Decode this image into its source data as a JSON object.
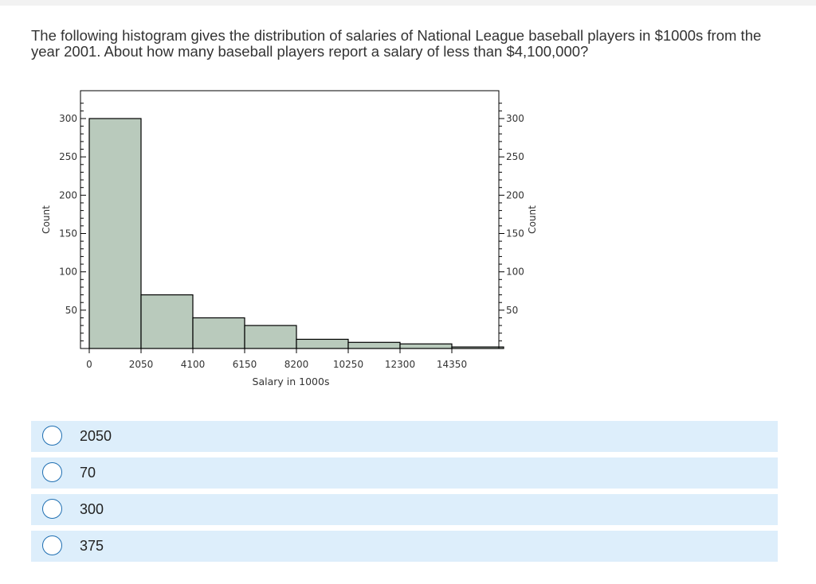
{
  "question": {
    "text": "The following histogram gives the distribution of salaries of National League baseball players in $1000s from the year 2001. About how many baseball players report a salary of less than $4,100,000?"
  },
  "chart_data": {
    "type": "bar",
    "histogram": true,
    "bin_edges": [
      0,
      2050,
      4100,
      6150,
      8200,
      10250,
      12300,
      14350,
      16400
    ],
    "counts": [
      300,
      70,
      40,
      30,
      12,
      8,
      6,
      2
    ],
    "xticks": [
      "0",
      "2050",
      "4100",
      "6150",
      "8200",
      "10250",
      "12300",
      "14350"
    ],
    "yticks": [
      50,
      100,
      150,
      200,
      250,
      300
    ],
    "ylim": [
      0,
      330
    ],
    "xlabel": "Salary in 1000s",
    "ylabel": "Count",
    "ylabel_right": "Count",
    "bar_color": "#b9cabc",
    "grid": false
  },
  "options": [
    {
      "label": "2050"
    },
    {
      "label": "70"
    },
    {
      "label": "300"
    },
    {
      "label": "375"
    }
  ],
  "colors": {
    "option_background": "#ddeefb",
    "radio_border": "#1f6fb2"
  }
}
